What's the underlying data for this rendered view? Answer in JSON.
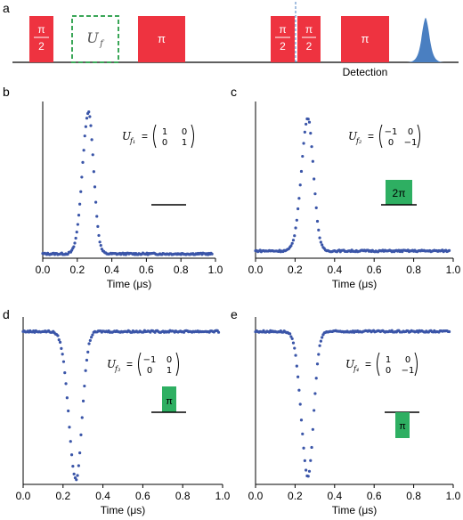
{
  "panels": {
    "a": "a",
    "b": "b",
    "c": "c",
    "d": "d",
    "e": "e"
  },
  "sequence": {
    "pulse_pi": "π",
    "half_num": "π",
    "half_den": "2",
    "uf_label": "U",
    "uf_sub": "f",
    "detection": "Detection",
    "pulse_color": "#ee3340",
    "uf_box_color": "#3aa657",
    "detect_color": "#4a7fc1"
  },
  "matrices": {
    "b": {
      "label": "U",
      "sub": "f₁",
      "rows": [
        [
          "1",
          "0"
        ],
        [
          "0",
          "1"
        ]
      ]
    },
    "c": {
      "label": "U",
      "sub": "f₂",
      "rows": [
        [
          "−1",
          "0"
        ],
        [
          "0",
          "−1"
        ]
      ]
    },
    "d": {
      "label": "U",
      "sub": "f₃",
      "rows": [
        [
          "−1",
          "0"
        ],
        [
          "0",
          "1"
        ]
      ]
    },
    "e": {
      "label": "U",
      "sub": "f₄",
      "rows": [
        [
          "1",
          "0"
        ],
        [
          "0",
          "−1"
        ]
      ]
    }
  },
  "phase_markers": {
    "c": "2π",
    "d": "π",
    "e": "π",
    "marker_color": "#2eaf62"
  },
  "chart_data": [
    {
      "panel": "b",
      "type": "scatter",
      "series_color": "#3a55a8",
      "xlabel": "Time (μs)",
      "x_ticks": [
        "0.0",
        "0.2",
        "0.4",
        "0.6",
        "0.8",
        "1.0"
      ],
      "xlim": [
        0,
        1.0
      ],
      "ylim": [
        0,
        1.05
      ],
      "baseline": 0.03,
      "peak_center": 0.265,
      "peak_height": 1.0,
      "peak_width": 0.035,
      "direction": "up",
      "x_range": [
        0.0,
        0.98
      ]
    },
    {
      "panel": "c",
      "type": "scatter",
      "series_color": "#3a55a8",
      "xlabel": "Time (μs)",
      "x_ticks": [
        "0.0",
        "0.2",
        "0.4",
        "0.6",
        "0.8",
        "1.0"
      ],
      "xlim": [
        0,
        1.0
      ],
      "ylim": [
        0,
        1.05
      ],
      "baseline": 0.05,
      "peak_center": 0.265,
      "peak_height": 0.96,
      "peak_width": 0.033,
      "direction": "up",
      "x_range": [
        0.0,
        0.98
      ]
    },
    {
      "panel": "d",
      "type": "scatter",
      "series_color": "#3a55a8",
      "xlabel": "Time (μs)",
      "x_ticks": [
        "0.0",
        "0.2",
        "0.4",
        "0.6",
        "0.8",
        "1.0"
      ],
      "xlim": [
        0,
        1.0
      ],
      "ylim": [
        0,
        1.05
      ],
      "baseline": 0.98,
      "peak_center": 0.265,
      "peak_height": 0.03,
      "peak_width": 0.035,
      "direction": "down",
      "x_range": [
        0.0,
        0.98
      ]
    },
    {
      "panel": "e",
      "type": "scatter",
      "series_color": "#3a55a8",
      "xlabel": "Time (μs)",
      "x_ticks": [
        "0.0",
        "0.2",
        "0.4",
        "0.6",
        "0.8",
        "1.0"
      ],
      "xlim": [
        0,
        1.0
      ],
      "ylim": [
        0,
        1.05
      ],
      "baseline": 0.98,
      "peak_center": 0.265,
      "peak_height": 0.05,
      "peak_width": 0.033,
      "direction": "down",
      "x_range": [
        0.0,
        0.98
      ]
    }
  ]
}
